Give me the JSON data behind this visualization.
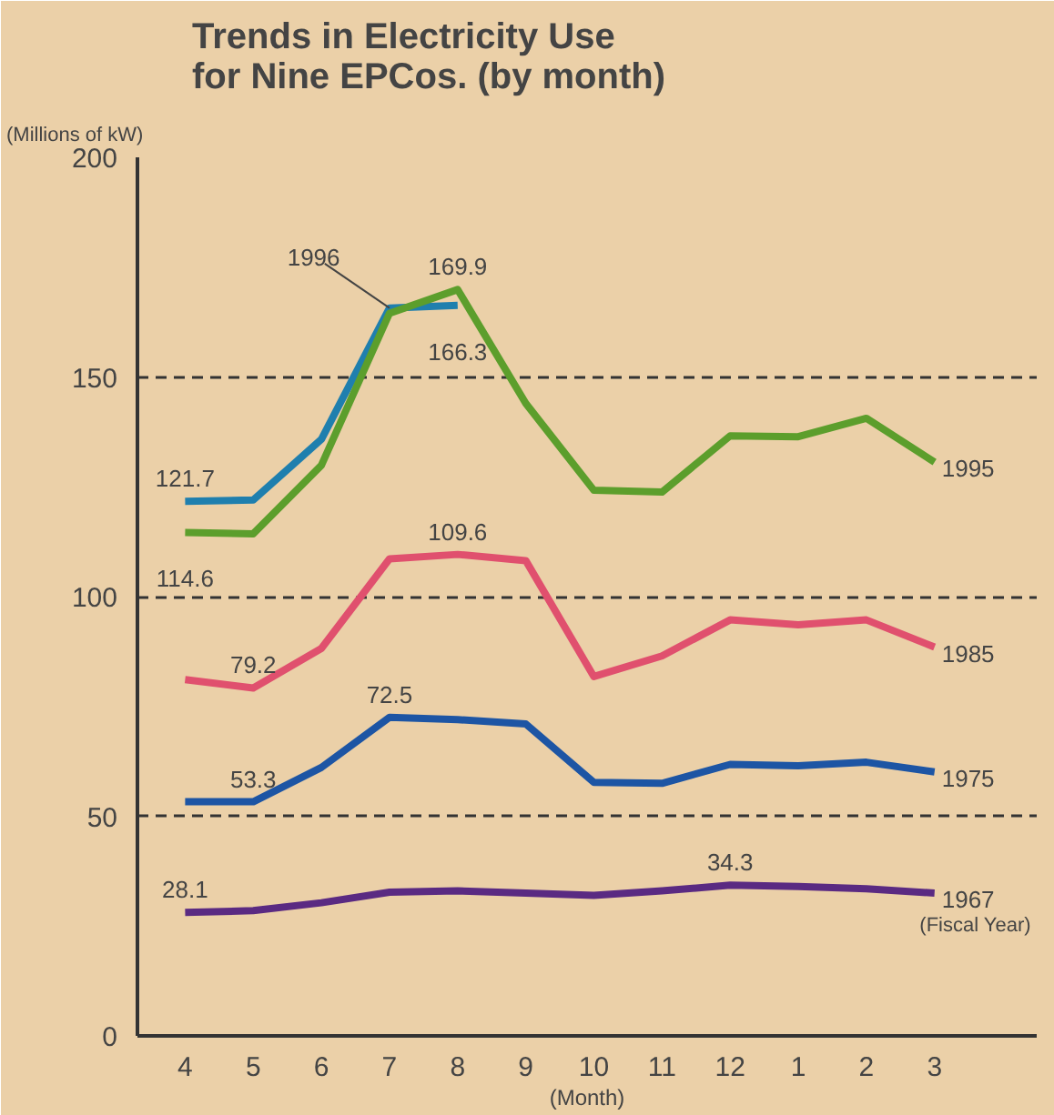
{
  "chart_data": {
    "type": "line",
    "title": "Trends in Electricity Use\nfor Nine EPCos. (by month)",
    "xlabel": "(Month)",
    "ylabel": "(Millions of kW)",
    "categories": [
      "4",
      "5",
      "6",
      "7",
      "8",
      "9",
      "10",
      "11",
      "12",
      "1",
      "2",
      "3"
    ],
    "series": [
      {
        "name": "1996",
        "color": "#1f7fae",
        "values": [
          121.7,
          122,
          135.8,
          165.7,
          166.3,
          null,
          null,
          null,
          null,
          null,
          null,
          null
        ]
      },
      {
        "name": "1995",
        "color": "#5c9e2c",
        "values": [
          114.6,
          114.3,
          129.9,
          164.5,
          169.9,
          144,
          124.2,
          123.8,
          136.6,
          136.4,
          140.6,
          130.6
        ]
      },
      {
        "name": "1985",
        "color": "#e0506e",
        "values": [
          81.1,
          79.2,
          88.2,
          108.6,
          109.6,
          108.2,
          81.8,
          86.5,
          94.7,
          93.6,
          94.7,
          88.5
        ]
      },
      {
        "name": "1975",
        "color": "#1d55a4",
        "values": [
          53.3,
          53.3,
          61.1,
          72.5,
          72,
          71,
          57.7,
          57.5,
          61.8,
          61.5,
          62.3,
          60.1
        ]
      },
      {
        "name": "1967",
        "color": "#5a2a82",
        "values": [
          28.1,
          28.5,
          30.3,
          32.7,
          33,
          32.5,
          32,
          33,
          34.3,
          34,
          33.5,
          32.5
        ]
      }
    ],
    "annotations": [
      {
        "text": "121.7",
        "x": "4",
        "y": 121.7
      },
      {
        "text": "114.6",
        "x": "4",
        "y": 114.6
      },
      {
        "text": "169.9",
        "x": "8",
        "y": 169.9
      },
      {
        "text": "166.3",
        "x": "8",
        "y": 166.3
      },
      {
        "text": "109.6",
        "x": "8",
        "y": 109.6
      },
      {
        "text": "79.2",
        "x": "5",
        "y": 79.2
      },
      {
        "text": "72.5",
        "x": "7",
        "y": 72.5
      },
      {
        "text": "53.3",
        "x": "5",
        "y": 53.3
      },
      {
        "text": "28.1",
        "x": "4",
        "y": 28.1
      },
      {
        "text": "34.3",
        "x": "12",
        "y": 34.3
      },
      "(Fiscal Year)"
    ],
    "ylim": [
      0,
      200
    ],
    "yticks": [
      0,
      50,
      100,
      150,
      200
    ],
    "grid": "y",
    "line_style": "solid",
    "marker": "none"
  }
}
